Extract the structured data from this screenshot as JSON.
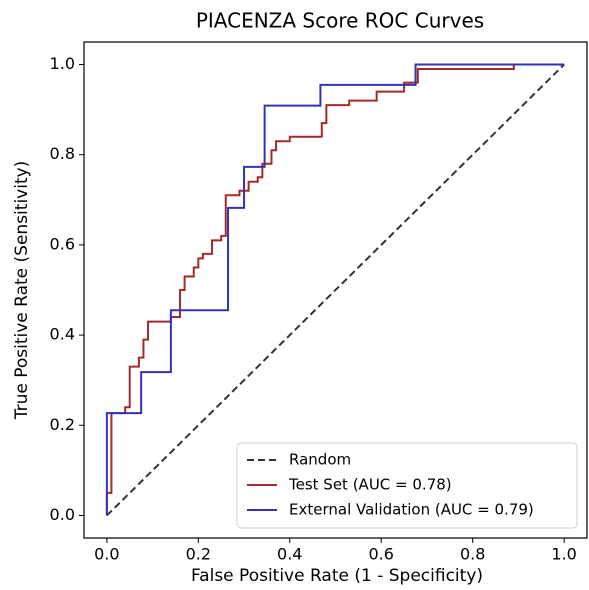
{
  "chart_data": {
    "type": "line",
    "title": "PIACENZA Score ROC Curves",
    "x_label": "False Positive Rate (1 - Specificity)",
    "y_label": "True Positive Rate (Sensitivity)",
    "xlim": [
      -0.05,
      1.05
    ],
    "ylim": [
      -0.05,
      1.05
    ],
    "xticks": [
      {
        "value": 0,
        "label": "0.0"
      },
      0.2,
      0.4,
      0.6,
      0.8,
      {
        "value": 1,
        "label": "1.0"
      }
    ],
    "yticks": [
      {
        "value": 0,
        "label": "0.0"
      },
      0.2,
      0.4,
      0.6,
      0.8,
      {
        "value": 1,
        "label": "1.0"
      }
    ],
    "legend": "lower right",
    "series": [
      {
        "name": "Random",
        "color": "#333333",
        "dashed": true,
        "x": [
          0,
          1
        ],
        "values": [
          0,
          1
        ]
      },
      {
        "name": "Test Set (AUC = 0.78)",
        "color": "#a52a2a",
        "x": [
          0,
          0,
          0.01,
          0.01,
          0.04,
          0.04,
          0.05,
          0.05,
          0.07,
          0.07,
          0.08,
          0.08,
          0.09,
          0.09,
          0.14,
          0.14,
          0.16,
          0.16,
          0.17,
          0.17,
          0.19,
          0.19,
          0.2,
          0.2,
          0.21,
          0.21,
          0.23,
          0.23,
          0.25,
          0.25,
          0.26,
          0.26,
          0.29,
          0.29,
          0.31,
          0.31,
          0.33,
          0.33,
          0.34,
          0.34,
          0.36,
          0.36,
          0.37,
          0.37,
          0.4,
          0.4,
          0.47,
          0.47,
          0.48,
          0.48,
          0.53,
          0.53,
          0.59,
          0.59,
          0.65,
          0.65,
          0.68,
          0.68,
          0.89,
          0.89,
          1.0
        ],
        "values": [
          0,
          0.05,
          0.05,
          0.227,
          0.227,
          0.24,
          0.24,
          0.33,
          0.33,
          0.35,
          0.35,
          0.39,
          0.39,
          0.43,
          0.43,
          0.44,
          0.44,
          0.5,
          0.5,
          0.53,
          0.53,
          0.55,
          0.55,
          0.57,
          0.57,
          0.58,
          0.58,
          0.61,
          0.61,
          0.62,
          0.62,
          0.71,
          0.71,
          0.72,
          0.72,
          0.74,
          0.74,
          0.75,
          0.75,
          0.78,
          0.78,
          0.81,
          0.81,
          0.83,
          0.83,
          0.84,
          0.84,
          0.87,
          0.87,
          0.91,
          0.91,
          0.92,
          0.92,
          0.94,
          0.94,
          0.96,
          0.96,
          0.99,
          0.99,
          1.0,
          1.0
        ]
      },
      {
        "name": "External Validation (AUC = 0.79)",
        "color": "#3333b5",
        "x": [
          0,
          0,
          0.075,
          0.075,
          0.14,
          0.14,
          0.265,
          0.265,
          0.3,
          0.3,
          0.345,
          0.345,
          0.467,
          0.467,
          0.675,
          0.675,
          1.0
        ],
        "values": [
          0,
          0.227,
          0.227,
          0.318,
          0.318,
          0.455,
          0.455,
          0.682,
          0.682,
          0.773,
          0.773,
          0.909,
          0.909,
          0.955,
          0.955,
          1.0,
          1.0
        ]
      }
    ]
  }
}
